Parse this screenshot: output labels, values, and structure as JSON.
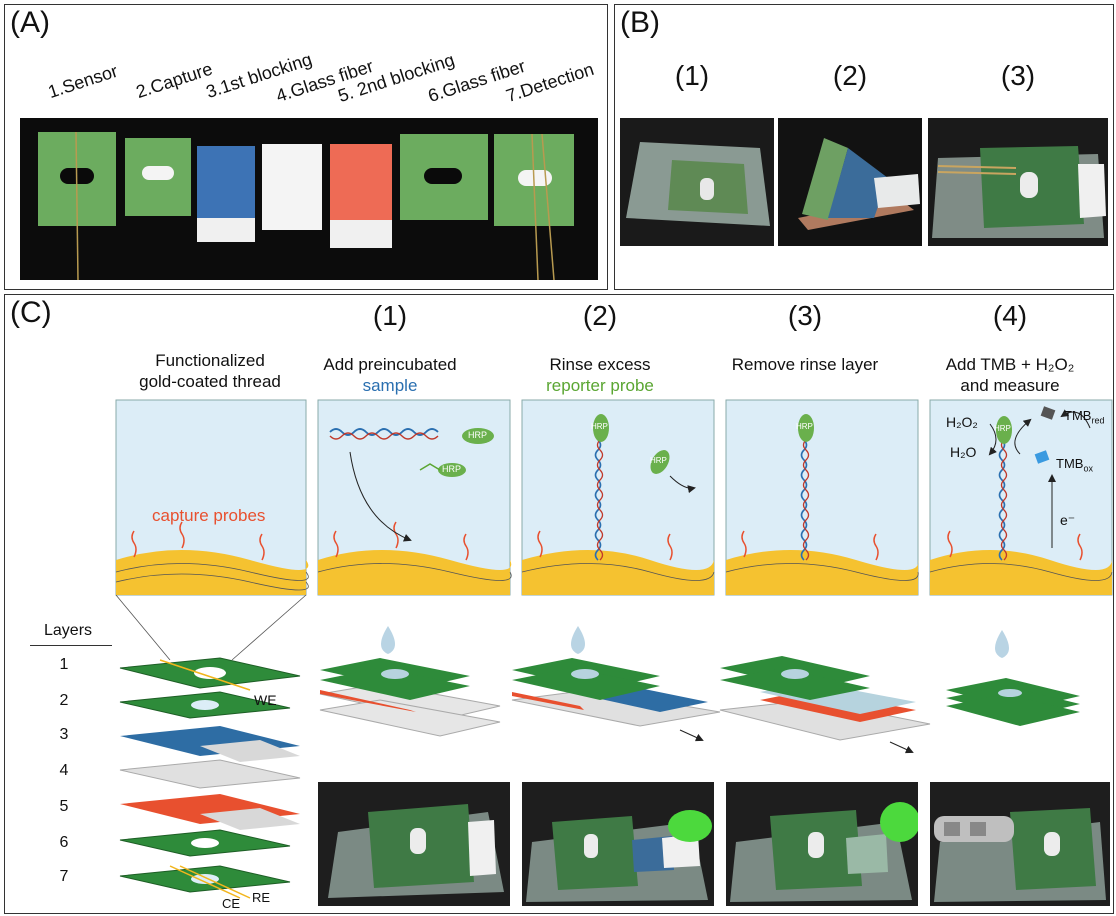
{
  "panelA": {
    "label": "(A)",
    "strips": [
      "1.Sensor",
      "2.Capture",
      "3.1st blocking",
      "4.Glass fiber",
      "5. 2nd blocking",
      "6.Glass fiber",
      "7.Detection"
    ]
  },
  "panelB": {
    "label": "(B)",
    "steps": [
      "(1)",
      "(2)",
      "(3)"
    ]
  },
  "panelC": {
    "label": "(C)",
    "steps": [
      "(1)",
      "(2)",
      "(3)",
      "(4)"
    ],
    "col0": {
      "line1": "Functionalized",
      "line2": "gold-coated thread",
      "probe_label": "capture probes"
    },
    "col1": {
      "line1": "Add preincubated",
      "line2": "sample"
    },
    "col2": {
      "line1": "Rinse excess",
      "line2": "reporter probe"
    },
    "col3": {
      "line1": "Remove rinse layer"
    },
    "col4": {
      "line1": "Add TMB + H₂O₂",
      "line2": "and measure"
    },
    "chem": {
      "h2o2": "H₂O₂",
      "h2o": "H₂O",
      "tmbred": "TMB",
      "tmbred_sub": "red",
      "tmbox": "TMB",
      "tmbox_sub": "ox",
      "electron": "e⁻"
    },
    "hrp": "HRP",
    "layers": {
      "title": "Layers",
      "numbers": [
        "1",
        "2",
        "3",
        "4",
        "5",
        "6",
        "7"
      ],
      "we": "WE",
      "ce": "CE",
      "re": "RE"
    }
  },
  "colors": {
    "green": "#2e8b3a",
    "blue": "#2e6da4",
    "red": "#e8502f",
    "white": "#f4f4f4",
    "gray": "#cfcfcf",
    "sample_blue": "#2a6fb0",
    "reporter_green": "#5aa632",
    "probe_orange": "#e8502f",
    "panel_bg": "#dcedf7",
    "gold": "#f2b51c"
  }
}
